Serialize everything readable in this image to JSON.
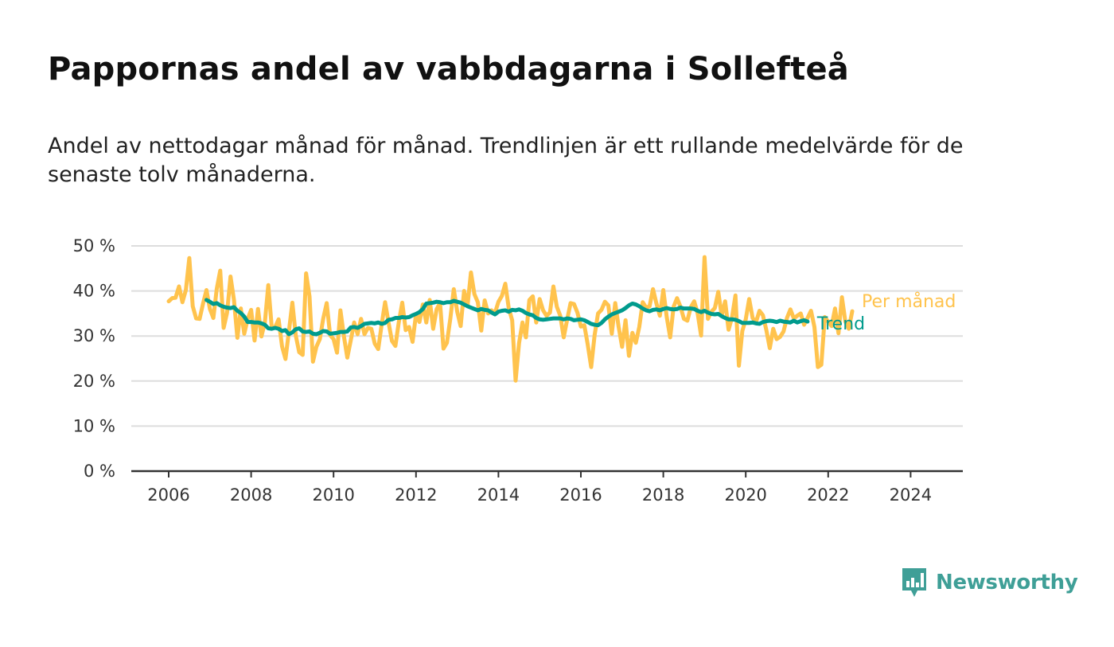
{
  "title": "Pappornas andel av vabbdagarna i Sollefteå",
  "subtitle": "Andel av nettodagar månad för månad. Trendlinjen är ett rullande medelvärde för de senaste tolv månaderna.",
  "brand": {
    "name": "Newsworthy",
    "color": "#3f9f97"
  },
  "colors": {
    "monthly": "#ffc34d",
    "trend": "#009b8d",
    "grid": "#dddddd",
    "axis": "#333333"
  },
  "chart_data": {
    "type": "line",
    "x_unit": "month",
    "start": "2006-01",
    "ylim": [
      0,
      50
    ],
    "yticks": [
      0,
      10,
      20,
      30,
      40,
      50
    ],
    "ytick_labels": [
      "0 %",
      "10 %",
      "20 %",
      "30 %",
      "40 %",
      "50 %"
    ],
    "xticks": [
      2006,
      2008,
      2010,
      2012,
      2014,
      2016,
      2018,
      2020,
      2022,
      2024
    ],
    "xtick_labels": [
      "2006",
      "2008",
      "2010",
      "2012",
      "2014",
      "2016",
      "2018",
      "2020",
      "2022",
      "2024"
    ],
    "grid": true,
    "series": [
      {
        "name": "Per månad",
        "color": "#ffc34d",
        "start": "2006-01",
        "values": [
          37.7,
          38.4,
          38.5,
          41.0,
          37.5,
          40.2,
          47.3,
          36.6,
          33.9,
          33.8,
          37.2,
          40.2,
          36.0,
          34.0,
          40.5,
          44.5,
          31.8,
          35.2,
          43.2,
          38.0,
          29.6,
          36.1,
          30.5,
          33.8,
          35.8,
          29.0,
          36.0,
          29.9,
          33.0,
          41.3,
          31.9,
          32.0,
          33.7,
          27.7,
          24.9,
          31.0,
          37.4,
          30.1,
          26.4,
          25.8,
          43.9,
          38.8,
          24.3,
          27.6,
          29.3,
          33.9,
          37.3,
          30.2,
          29.3,
          26.3,
          35.7,
          30.0,
          25.2,
          29.0,
          33.0,
          30.4,
          33.8,
          30.4,
          31.8,
          31.6,
          28.3,
          27.1,
          32.5,
          37.5,
          33.0,
          28.9,
          27.8,
          33.1,
          37.4,
          31.3,
          32.0,
          28.7,
          34.8,
          33.1,
          37.0,
          33.0,
          38.0,
          31.6,
          35.9,
          37.4,
          27.2,
          28.5,
          33.9,
          40.4,
          35.4,
          32.2,
          40.0,
          36.7,
          44.1,
          39.3,
          37.5,
          31.2,
          37.9,
          35.0,
          35.7,
          35.1,
          37.6,
          38.9,
          41.6,
          36.2,
          33.5,
          20.1,
          28.4,
          33.0,
          29.7,
          38.0,
          38.8,
          33.0,
          38.2,
          35.7,
          34.5,
          35.2,
          41.0,
          36.5,
          34.5,
          29.7,
          33.6,
          37.3,
          37.1,
          35.2,
          32.1,
          32.4,
          28.1,
          23.1,
          30.2,
          35.0,
          35.8,
          37.6,
          36.8,
          30.5,
          37.3,
          32.0,
          27.6,
          33.5,
          25.6,
          30.7,
          28.5,
          32.0,
          37.5,
          36.3,
          36.6,
          40.4,
          37.2,
          34.5,
          40.2,
          34.2,
          29.7,
          36.5,
          38.4,
          36.5,
          33.8,
          33.4,
          36.4,
          37.7,
          35.0,
          30.1,
          47.5,
          33.8,
          35.4,
          36.2,
          39.8,
          34.5,
          37.7,
          31.4,
          34.1,
          39.0,
          23.4,
          31.1,
          33.7,
          38.2,
          34.0,
          33.1,
          35.6,
          34.6,
          31.3,
          27.3,
          31.6,
          29.3,
          29.8,
          31.0,
          34.0,
          35.9,
          33.9,
          34.5,
          35.0,
          32.5,
          34.0,
          35.6,
          32.0,
          23.1,
          23.6,
          34.2,
          33.2,
          32.2,
          36.1,
          30.6,
          38.6,
          33.2,
          31.6,
          35.5
        ]
      },
      {
        "name": "Trend",
        "color": "#009b8d",
        "start": "2006-12",
        "values": [
          38.0,
          37.6,
          37.1,
          37.3,
          36.8,
          36.5,
          36.3,
          36.2,
          36.4,
          35.6,
          35.1,
          34.3,
          33.1,
          33.1,
          33.0,
          33.0,
          32.8,
          32.5,
          31.7,
          31.6,
          31.8,
          31.6,
          31.1,
          31.3,
          30.4,
          30.8,
          31.5,
          31.7,
          31.0,
          30.9,
          31.0,
          30.5,
          30.4,
          30.7,
          31.1,
          31.0,
          30.5,
          30.6,
          30.7,
          30.9,
          30.9,
          31.0,
          31.9,
          32.0,
          31.8,
          32.2,
          32.7,
          32.8,
          32.9,
          32.8,
          33.0,
          32.7,
          32.9,
          33.6,
          33.7,
          34.0,
          34.0,
          34.2,
          34.1,
          34.2,
          34.6,
          34.9,
          35.3,
          36.0,
          37.2,
          37.3,
          37.4,
          37.6,
          37.5,
          37.3,
          37.5,
          37.5,
          37.8,
          37.6,
          37.4,
          37.0,
          36.6,
          36.3,
          36.0,
          35.7,
          36.0,
          35.8,
          35.7,
          35.2,
          34.8,
          35.4,
          35.6,
          35.7,
          35.4,
          35.8,
          35.7,
          35.9,
          35.6,
          35.1,
          34.8,
          34.6,
          34.0,
          33.7,
          33.6,
          33.7,
          33.8,
          33.9,
          33.9,
          33.9,
          33.7,
          33.9,
          33.8,
          33.5,
          33.6,
          33.7,
          33.5,
          33.1,
          32.7,
          32.5,
          32.4,
          32.9,
          33.7,
          34.3,
          34.8,
          35.1,
          35.4,
          35.7,
          36.2,
          36.8,
          37.2,
          37.0,
          36.6,
          36.1,
          35.7,
          35.5,
          35.8,
          35.9,
          35.7,
          36.0,
          36.2,
          36.0,
          35.9,
          36.0,
          36.3,
          36.1,
          36.1,
          36.1,
          36.0,
          35.6,
          35.3,
          35.6,
          35.2,
          34.9,
          34.8,
          34.9,
          34.4,
          34.0,
          33.7,
          33.7,
          33.6,
          33.3,
          32.9,
          32.9,
          32.9,
          33.0,
          32.8,
          32.7,
          33.1,
          33.3,
          33.4,
          33.3,
          33.1,
          33.4,
          33.2,
          33.1,
          33.0,
          33.4,
          33.0,
          33.3,
          33.5,
          33.2
        ]
      }
    ]
  }
}
